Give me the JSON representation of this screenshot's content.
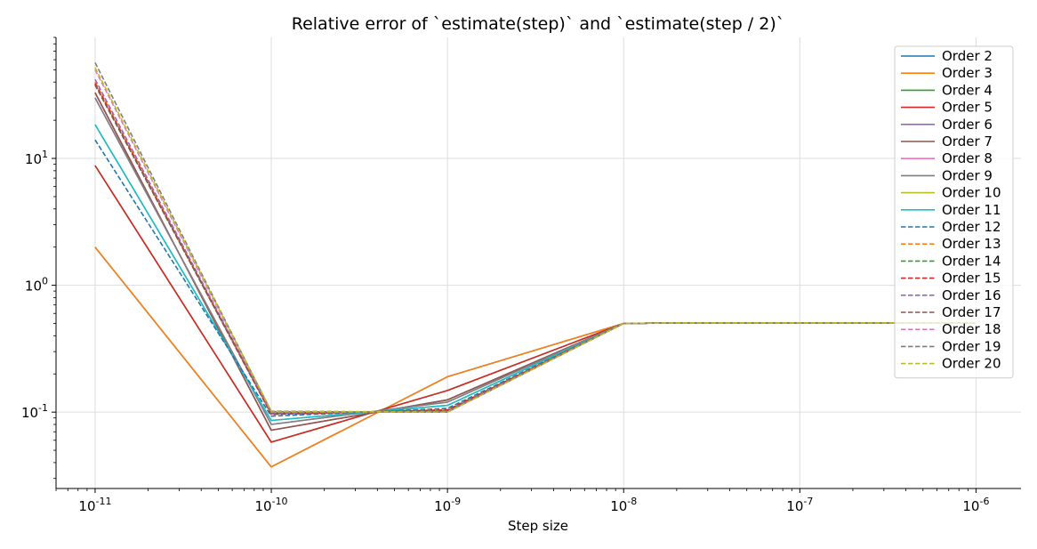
{
  "chart_data": {
    "type": "line",
    "title": "Relative error of `estimate(step)` and `estimate(step / 2)`",
    "xlabel": "Step size",
    "ylabel": "",
    "xscale": "log",
    "yscale": "log",
    "xlim": [
      6e-12,
      1.8e-06
    ],
    "ylim": [
      0.025,
      90
    ],
    "grid": true,
    "legend_position": "top-right",
    "x_ticks": [
      {
        "base": "10",
        "exp": "-11"
      },
      {
        "base": "10",
        "exp": "-10"
      },
      {
        "base": "10",
        "exp": "-9"
      },
      {
        "base": "10",
        "exp": "-8"
      },
      {
        "base": "10",
        "exp": "-7"
      },
      {
        "base": "10",
        "exp": "-6"
      }
    ],
    "y_ticks": [
      {
        "base": "10",
        "exp": "-1"
      },
      {
        "base": "10",
        "exp": "0"
      },
      {
        "base": "10",
        "exp": "1"
      }
    ],
    "x": [
      1e-11,
      1e-10,
      1e-09,
      1e-08,
      2e-08,
      1e-07,
      1e-06
    ],
    "series": [
      {
        "name": "Order 2",
        "color": "#1f77b4",
        "dash": "solid",
        "values": [
          2.0,
          0.037,
          0.19,
          0.5,
          0.505,
          0.505,
          0.505
        ]
      },
      {
        "name": "Order 3",
        "color": "#ff7f0e",
        "dash": "solid",
        "values": [
          2.0,
          0.037,
          0.19,
          0.5,
          0.505,
          0.505,
          0.505
        ]
      },
      {
        "name": "Order 4",
        "color": "#2ca02c",
        "dash": "solid",
        "values": [
          8.8,
          0.058,
          0.148,
          0.5,
          0.505,
          0.505,
          0.505
        ]
      },
      {
        "name": "Order 5",
        "color": "#d62728",
        "dash": "solid",
        "values": [
          8.8,
          0.058,
          0.148,
          0.5,
          0.505,
          0.505,
          0.505
        ]
      },
      {
        "name": "Order 6",
        "color": "#9467bd",
        "dash": "solid",
        "values": [
          33,
          0.072,
          0.125,
          0.5,
          0.505,
          0.505,
          0.505
        ]
      },
      {
        "name": "Order 7",
        "color": "#8c564b",
        "dash": "solid",
        "values": [
          33,
          0.072,
          0.125,
          0.5,
          0.505,
          0.505,
          0.505
        ]
      },
      {
        "name": "Order 8",
        "color": "#e377c2",
        "dash": "solid",
        "values": [
          30,
          0.08,
          0.12,
          0.5,
          0.505,
          0.505,
          0.505
        ]
      },
      {
        "name": "Order 9",
        "color": "#7f7f7f",
        "dash": "solid",
        "values": [
          30,
          0.08,
          0.12,
          0.5,
          0.505,
          0.505,
          0.505
        ]
      },
      {
        "name": "Order 10",
        "color": "#bcbd22",
        "dash": "solid",
        "values": [
          18.5,
          0.086,
          0.113,
          0.5,
          0.505,
          0.505,
          0.505
        ]
      },
      {
        "name": "Order 11",
        "color": "#17becf",
        "dash": "solid",
        "values": [
          18.5,
          0.086,
          0.113,
          0.5,
          0.505,
          0.505,
          0.505
        ]
      },
      {
        "name": "Order 12",
        "color": "#1f77b4",
        "dash": "dashed",
        "values": [
          14,
          0.093,
          0.107,
          0.5,
          0.505,
          0.505,
          0.505
        ]
      },
      {
        "name": "Order 13",
        "color": "#ff7f0e",
        "dash": "dashed",
        "values": [
          40,
          0.097,
          0.104,
          0.5,
          0.505,
          0.505,
          0.505
        ]
      },
      {
        "name": "Order 14",
        "color": "#2ca02c",
        "dash": "dashed",
        "values": [
          38,
          0.097,
          0.103,
          0.5,
          0.505,
          0.505,
          0.505
        ]
      },
      {
        "name": "Order 15",
        "color": "#d62728",
        "dash": "dashed",
        "values": [
          39,
          0.096,
          0.104,
          0.5,
          0.505,
          0.505,
          0.505
        ]
      },
      {
        "name": "Order 16",
        "color": "#9467bd",
        "dash": "dashed",
        "values": [
          42,
          0.098,
          0.102,
          0.5,
          0.505,
          0.505,
          0.505
        ]
      },
      {
        "name": "Order 17",
        "color": "#8c564b",
        "dash": "dashed",
        "values": [
          38,
          0.099,
          0.101,
          0.5,
          0.505,
          0.505,
          0.505
        ]
      },
      {
        "name": "Order 18",
        "color": "#e377c2",
        "dash": "dashed",
        "values": [
          50,
          0.1,
          0.1,
          0.5,
          0.505,
          0.505,
          0.505
        ]
      },
      {
        "name": "Order 19",
        "color": "#7f7f7f",
        "dash": "dashed",
        "values": [
          57,
          0.101,
          0.1,
          0.5,
          0.505,
          0.505,
          0.505
        ]
      },
      {
        "name": "Order 20",
        "color": "#bcbd22",
        "dash": "dashed",
        "values": [
          52,
          0.102,
          0.1,
          0.5,
          0.505,
          0.505,
          0.505
        ]
      }
    ]
  }
}
